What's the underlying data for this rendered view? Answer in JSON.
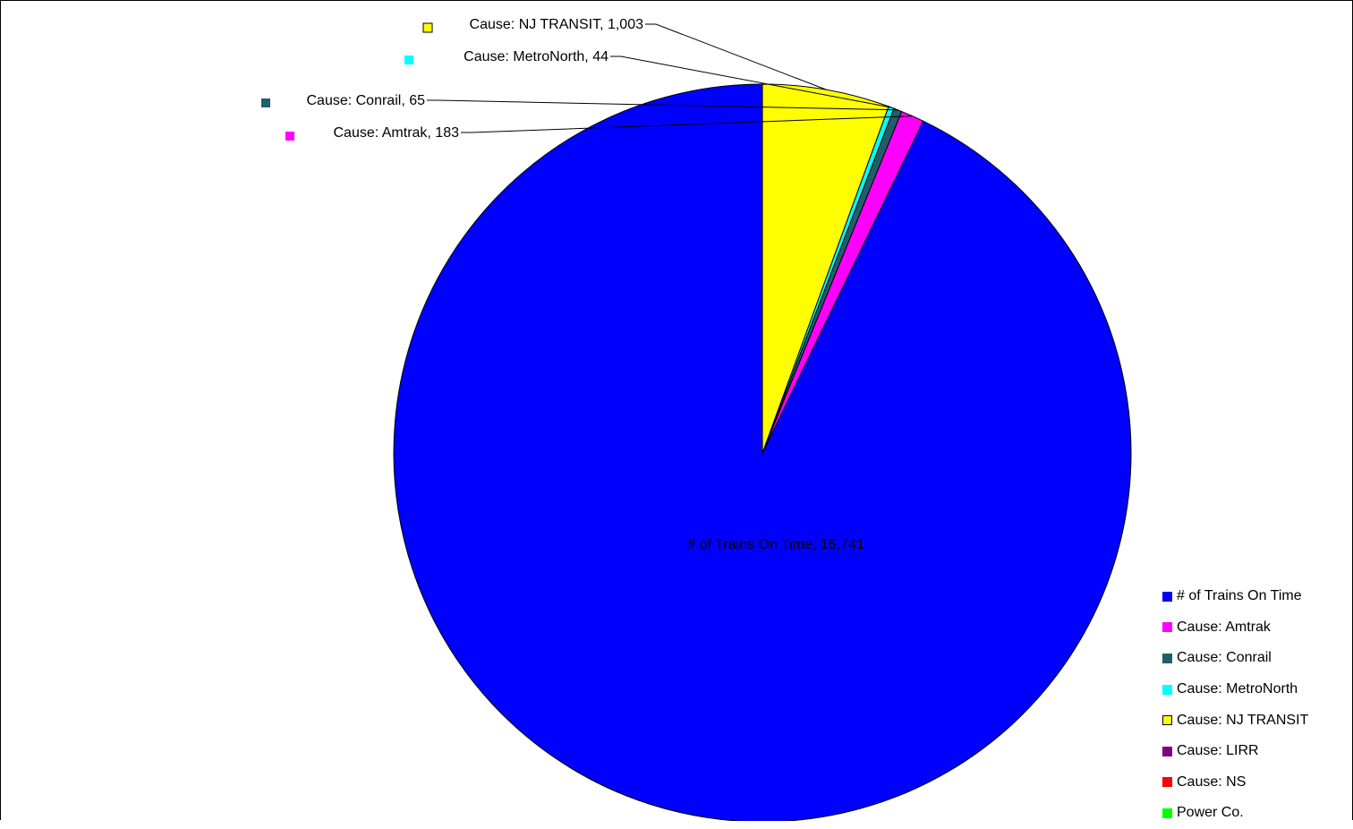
{
  "chart_data": {
    "type": "pie",
    "title": "",
    "start_angle_deg": 0,
    "direction": "counterclockwise",
    "slices": [
      {
        "name": "# of Trains On Time",
        "value": 16741,
        "label": "# of Trains On Time, 16,741",
        "color": "#0000FF"
      },
      {
        "name": "Cause:  Amtrak",
        "value": 183,
        "label": "Cause:  Amtrak, 183",
        "color": "#FF00FF"
      },
      {
        "name": "Cause:  Conrail",
        "value": 65,
        "label": "Cause:  Conrail, 65",
        "color": "#1F5F6B"
      },
      {
        "name": "Cause:  MetroNorth",
        "value": 44,
        "label": "Cause:  MetroNorth, 44",
        "color": "#00FFFF"
      },
      {
        "name": "Cause:  NJ TRANSIT",
        "value": 1003,
        "label": "Cause:  NJ TRANSIT, 1,003",
        "color": "#FFFF00"
      },
      {
        "name": "Cause: LIRR",
        "value": 0,
        "label": "",
        "color": "#800080"
      },
      {
        "name": "Cause: NS",
        "value": 0,
        "label": "",
        "color": "#FF0000"
      },
      {
        "name": "Power Co.",
        "value": 0,
        "label": "",
        "color": "#00FF00"
      }
    ],
    "legend": {
      "position": "bottom-right",
      "entries": [
        "# of Trains On Time",
        "Cause:  Amtrak",
        "Cause:  Conrail",
        "Cause:  MetroNorth",
        "Cause:  NJ TRANSIT",
        "Cause: LIRR",
        "Cause: NS",
        "Power Co."
      ]
    }
  }
}
